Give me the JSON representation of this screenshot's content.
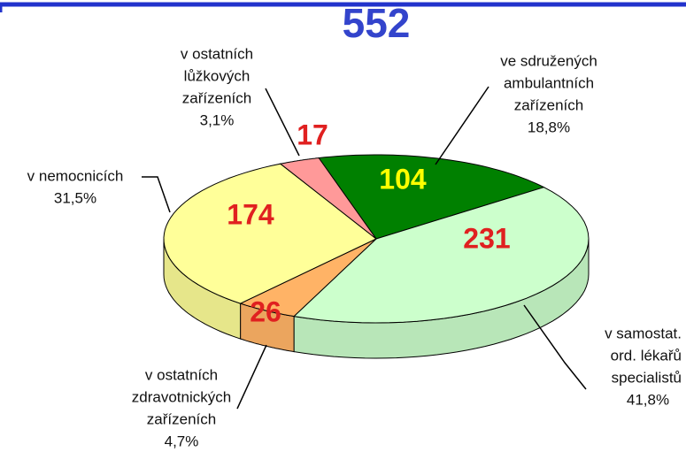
{
  "chart_data": {
    "type": "pie3d",
    "title": "552",
    "categories": [
      [
        "ve sdružených",
        "ambulantních",
        "zařízeních"
      ],
      [
        "v samostat.",
        "ord. lékařů",
        "specialistů"
      ],
      [
        "v ostatních",
        "zdravotnických",
        "zařízeních"
      ],
      [
        "v nemocnicích"
      ],
      [
        "v ostatních",
        "lůžkových",
        "zařízeních"
      ]
    ],
    "values": [
      104,
      231,
      26,
      174,
      17
    ],
    "shares": [
      {
        "value": 18.8,
        "label": "18,8%"
      },
      {
        "value": 41.8,
        "label": "41,8%"
      },
      {
        "value": 4.7,
        "label": "4,7%"
      },
      {
        "value": 31.5,
        "label": "31,5%"
      },
      {
        "value": 3.1,
        "label": "3,1%"
      }
    ],
    "colors": [
      "#008000",
      "#ccffcc",
      "#ffb366",
      "#ffff99",
      "#ff9999"
    ],
    "value_label_colors": [
      "#ffff00",
      "#e02020",
      "#e02020",
      "#e02020",
      "#e02020"
    ]
  }
}
